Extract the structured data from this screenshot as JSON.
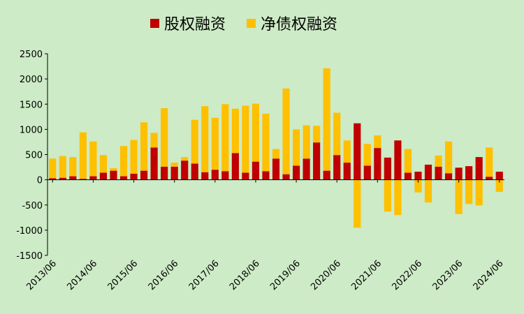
{
  "chart_data": {
    "type": "bar",
    "stacked": true,
    "categories": [
      "2013/06",
      null,
      null,
      null,
      "2014/06",
      null,
      null,
      null,
      "2015/06",
      null,
      null,
      null,
      "2016/06",
      null,
      null,
      null,
      "2017/06",
      null,
      null,
      null,
      "2018/06",
      null,
      null,
      null,
      "2019/06",
      null,
      null,
      null,
      "2020/06",
      null,
      null,
      null,
      "2021/06",
      null,
      null,
      null,
      "2022/06",
      null,
      null,
      null,
      "2023/06",
      null,
      null,
      null,
      "2024/06"
    ],
    "series": [
      {
        "name": "股权融资",
        "color": "#c00000",
        "values": [
          30,
          40,
          70,
          20,
          70,
          140,
          180,
          70,
          120,
          180,
          640,
          260,
          260,
          380,
          320,
          150,
          200,
          170,
          530,
          140,
          360,
          170,
          420,
          110,
          280,
          420,
          740,
          180,
          490,
          340,
          1120,
          280,
          630,
          440,
          780,
          140,
          160,
          300,
          260,
          130,
          240,
          270,
          450,
          60,
          160
        ]
      },
      {
        "name": "净债权融资",
        "color": "#ffc000",
        "values": [
          390,
          430,
          380,
          920,
          690,
          350,
          50,
          600,
          670,
          960,
          290,
          1160,
          80,
          70,
          870,
          1310,
          1030,
          1330,
          880,
          1330,
          1150,
          1140,
          190,
          1700,
          720,
          660,
          330,
          2030,
          840,
          440,
          -950,
          430,
          250,
          -630,
          -700,
          470,
          -250,
          -450,
          220,
          630,
          -680,
          -480,
          -510,
          580,
          -240
        ]
      }
    ],
    "ylim": [
      -1500,
      2500
    ],
    "yticks": [
      -1500,
      -1000,
      -500,
      0,
      500,
      1000,
      1500,
      2000,
      2500
    ]
  }
}
